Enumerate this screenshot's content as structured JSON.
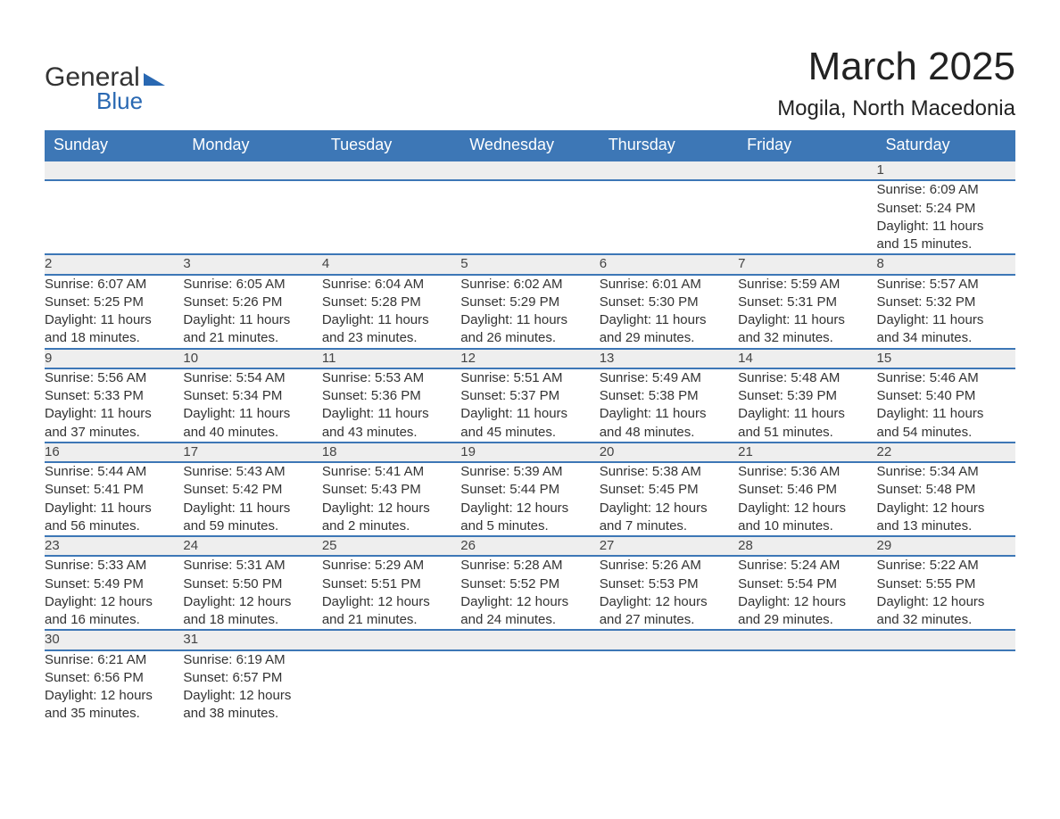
{
  "logo": {
    "word1": "General",
    "word2": "Blue"
  },
  "title": "March 2025",
  "location": "Mogila, North Macedonia",
  "colors": {
    "header_bg": "#3d77b6",
    "header_text": "#ffffff",
    "daynum_bg": "#eeeeee",
    "border": "#3d77b6",
    "logo_accent": "#2968b2",
    "body_text": "#333333",
    "background": "#ffffff"
  },
  "fonts": {
    "title_size_pt": 33,
    "location_size_pt": 18,
    "header_size_pt": 14,
    "cell_size_pt": 11
  },
  "weekdays": [
    "Sunday",
    "Monday",
    "Tuesday",
    "Wednesday",
    "Thursday",
    "Friday",
    "Saturday"
  ],
  "weeks": [
    [
      null,
      null,
      null,
      null,
      null,
      null,
      {
        "d": "1",
        "sr": "Sunrise: 6:09 AM",
        "ss": "Sunset: 5:24 PM",
        "dl1": "Daylight: 11 hours",
        "dl2": "and 15 minutes."
      }
    ],
    [
      {
        "d": "2",
        "sr": "Sunrise: 6:07 AM",
        "ss": "Sunset: 5:25 PM",
        "dl1": "Daylight: 11 hours",
        "dl2": "and 18 minutes."
      },
      {
        "d": "3",
        "sr": "Sunrise: 6:05 AM",
        "ss": "Sunset: 5:26 PM",
        "dl1": "Daylight: 11 hours",
        "dl2": "and 21 minutes."
      },
      {
        "d": "4",
        "sr": "Sunrise: 6:04 AM",
        "ss": "Sunset: 5:28 PM",
        "dl1": "Daylight: 11 hours",
        "dl2": "and 23 minutes."
      },
      {
        "d": "5",
        "sr": "Sunrise: 6:02 AM",
        "ss": "Sunset: 5:29 PM",
        "dl1": "Daylight: 11 hours",
        "dl2": "and 26 minutes."
      },
      {
        "d": "6",
        "sr": "Sunrise: 6:01 AM",
        "ss": "Sunset: 5:30 PM",
        "dl1": "Daylight: 11 hours",
        "dl2": "and 29 minutes."
      },
      {
        "d": "7",
        "sr": "Sunrise: 5:59 AM",
        "ss": "Sunset: 5:31 PM",
        "dl1": "Daylight: 11 hours",
        "dl2": "and 32 minutes."
      },
      {
        "d": "8",
        "sr": "Sunrise: 5:57 AM",
        "ss": "Sunset: 5:32 PM",
        "dl1": "Daylight: 11 hours",
        "dl2": "and 34 minutes."
      }
    ],
    [
      {
        "d": "9",
        "sr": "Sunrise: 5:56 AM",
        "ss": "Sunset: 5:33 PM",
        "dl1": "Daylight: 11 hours",
        "dl2": "and 37 minutes."
      },
      {
        "d": "10",
        "sr": "Sunrise: 5:54 AM",
        "ss": "Sunset: 5:34 PM",
        "dl1": "Daylight: 11 hours",
        "dl2": "and 40 minutes."
      },
      {
        "d": "11",
        "sr": "Sunrise: 5:53 AM",
        "ss": "Sunset: 5:36 PM",
        "dl1": "Daylight: 11 hours",
        "dl2": "and 43 minutes."
      },
      {
        "d": "12",
        "sr": "Sunrise: 5:51 AM",
        "ss": "Sunset: 5:37 PM",
        "dl1": "Daylight: 11 hours",
        "dl2": "and 45 minutes."
      },
      {
        "d": "13",
        "sr": "Sunrise: 5:49 AM",
        "ss": "Sunset: 5:38 PM",
        "dl1": "Daylight: 11 hours",
        "dl2": "and 48 minutes."
      },
      {
        "d": "14",
        "sr": "Sunrise: 5:48 AM",
        "ss": "Sunset: 5:39 PM",
        "dl1": "Daylight: 11 hours",
        "dl2": "and 51 minutes."
      },
      {
        "d": "15",
        "sr": "Sunrise: 5:46 AM",
        "ss": "Sunset: 5:40 PM",
        "dl1": "Daylight: 11 hours",
        "dl2": "and 54 minutes."
      }
    ],
    [
      {
        "d": "16",
        "sr": "Sunrise: 5:44 AM",
        "ss": "Sunset: 5:41 PM",
        "dl1": "Daylight: 11 hours",
        "dl2": "and 56 minutes."
      },
      {
        "d": "17",
        "sr": "Sunrise: 5:43 AM",
        "ss": "Sunset: 5:42 PM",
        "dl1": "Daylight: 11 hours",
        "dl2": "and 59 minutes."
      },
      {
        "d": "18",
        "sr": "Sunrise: 5:41 AM",
        "ss": "Sunset: 5:43 PM",
        "dl1": "Daylight: 12 hours",
        "dl2": "and 2 minutes."
      },
      {
        "d": "19",
        "sr": "Sunrise: 5:39 AM",
        "ss": "Sunset: 5:44 PM",
        "dl1": "Daylight: 12 hours",
        "dl2": "and 5 minutes."
      },
      {
        "d": "20",
        "sr": "Sunrise: 5:38 AM",
        "ss": "Sunset: 5:45 PM",
        "dl1": "Daylight: 12 hours",
        "dl2": "and 7 minutes."
      },
      {
        "d": "21",
        "sr": "Sunrise: 5:36 AM",
        "ss": "Sunset: 5:46 PM",
        "dl1": "Daylight: 12 hours",
        "dl2": "and 10 minutes."
      },
      {
        "d": "22",
        "sr": "Sunrise: 5:34 AM",
        "ss": "Sunset: 5:48 PM",
        "dl1": "Daylight: 12 hours",
        "dl2": "and 13 minutes."
      }
    ],
    [
      {
        "d": "23",
        "sr": "Sunrise: 5:33 AM",
        "ss": "Sunset: 5:49 PM",
        "dl1": "Daylight: 12 hours",
        "dl2": "and 16 minutes."
      },
      {
        "d": "24",
        "sr": "Sunrise: 5:31 AM",
        "ss": "Sunset: 5:50 PM",
        "dl1": "Daylight: 12 hours",
        "dl2": "and 18 minutes."
      },
      {
        "d": "25",
        "sr": "Sunrise: 5:29 AM",
        "ss": "Sunset: 5:51 PM",
        "dl1": "Daylight: 12 hours",
        "dl2": "and 21 minutes."
      },
      {
        "d": "26",
        "sr": "Sunrise: 5:28 AM",
        "ss": "Sunset: 5:52 PM",
        "dl1": "Daylight: 12 hours",
        "dl2": "and 24 minutes."
      },
      {
        "d": "27",
        "sr": "Sunrise: 5:26 AM",
        "ss": "Sunset: 5:53 PM",
        "dl1": "Daylight: 12 hours",
        "dl2": "and 27 minutes."
      },
      {
        "d": "28",
        "sr": "Sunrise: 5:24 AM",
        "ss": "Sunset: 5:54 PM",
        "dl1": "Daylight: 12 hours",
        "dl2": "and 29 minutes."
      },
      {
        "d": "29",
        "sr": "Sunrise: 5:22 AM",
        "ss": "Sunset: 5:55 PM",
        "dl1": "Daylight: 12 hours",
        "dl2": "and 32 minutes."
      }
    ],
    [
      {
        "d": "30",
        "sr": "Sunrise: 6:21 AM",
        "ss": "Sunset: 6:56 PM",
        "dl1": "Daylight: 12 hours",
        "dl2": "and 35 minutes."
      },
      {
        "d": "31",
        "sr": "Sunrise: 6:19 AM",
        "ss": "Sunset: 6:57 PM",
        "dl1": "Daylight: 12 hours",
        "dl2": "and 38 minutes."
      },
      null,
      null,
      null,
      null,
      null
    ]
  ]
}
